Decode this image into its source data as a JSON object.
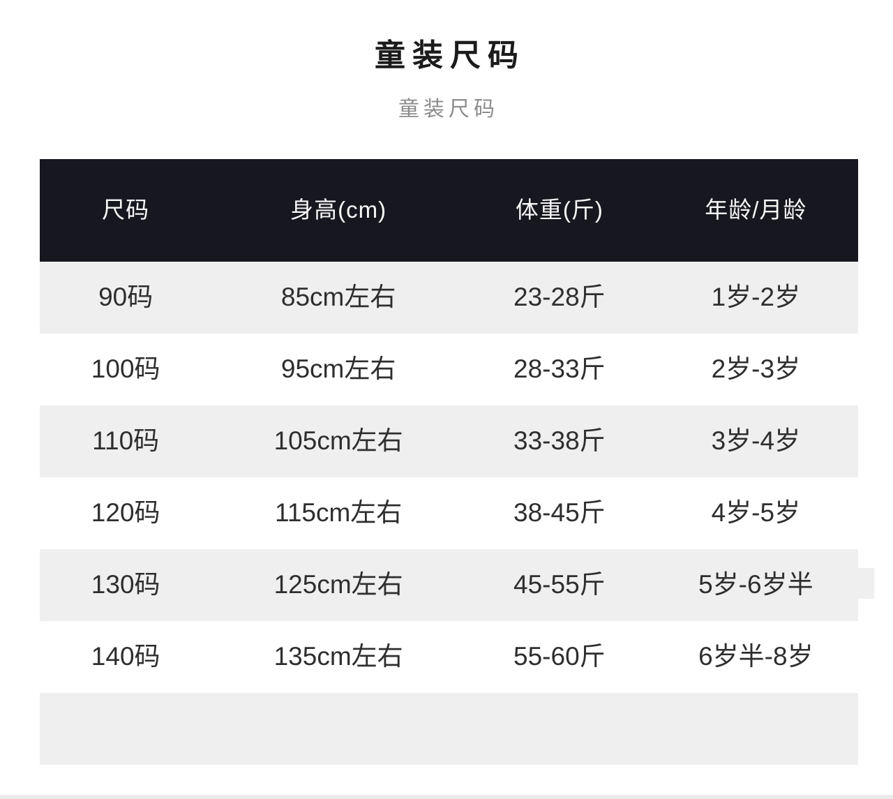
{
  "page": {
    "title": "童装尺码",
    "subtitle": "童装尺码"
  },
  "table": {
    "columns": [
      "尺码",
      "身高(cm)",
      "体重(斤)",
      "年龄/月龄"
    ],
    "rows": [
      [
        "90码",
        "85cm左右",
        "23-28斤",
        "1岁-2岁"
      ],
      [
        "100码",
        "95cm左右",
        "28-33斤",
        "2岁-3岁"
      ],
      [
        "110码",
        "105cm左右",
        "33-38斤",
        "3岁-4岁"
      ],
      [
        "120码",
        "115cm左右",
        "38-45斤",
        "4岁-5岁"
      ],
      [
        "130码",
        "125cm左右",
        "45-55斤",
        "5岁-6岁半"
      ],
      [
        "140码",
        "135cm左右",
        "55-60斤",
        "6岁半-8岁"
      ]
    ]
  },
  "colors": {
    "header_bg": "#17171f",
    "header_text": "#f7f7f7",
    "row_alt_bg": "#efeff0",
    "row_bg": "#ffffff",
    "body_text": "#2e2e2e",
    "title_text": "#1b1b1b",
    "subtitle_text": "#8c8c8c",
    "bottom_strip": "#ebebeb"
  }
}
